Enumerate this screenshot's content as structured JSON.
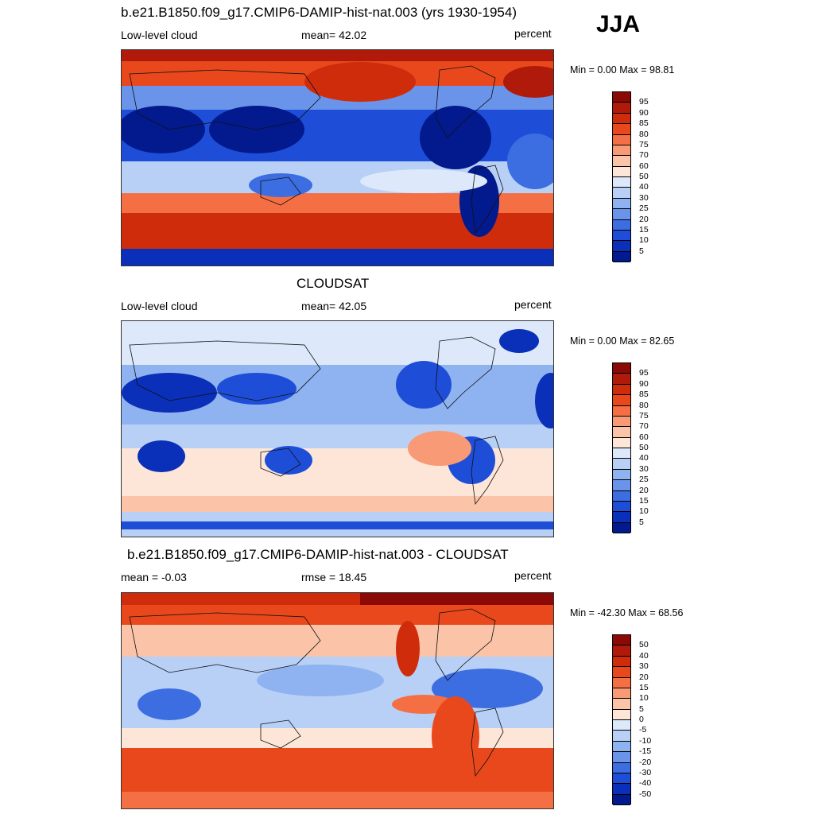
{
  "season": "JJA",
  "panels": [
    {
      "title": "b.e21.B1850.f09_g17.CMIP6-DAMIP-hist-nat.003 (yrs 1930-1954)",
      "left": "Low-level cloud",
      "center": "mean=  42.02",
      "right": "percent",
      "minmax": "Min =   0.00 Max =  98.81",
      "colorbar_labels": [
        "95",
        "90",
        "85",
        "80",
        "75",
        "70",
        "60",
        "50",
        "40",
        "30",
        "25",
        "20",
        "15",
        "10",
        "5"
      ]
    },
    {
      "title": "CLOUDSAT",
      "left": "Low-level cloud",
      "center": "mean=  42.05",
      "right": "percent",
      "minmax": "Min =   0.00 Max =  82.65",
      "colorbar_labels": [
        "95",
        "90",
        "85",
        "80",
        "75",
        "70",
        "60",
        "50",
        "40",
        "30",
        "25",
        "20",
        "15",
        "10",
        "5"
      ]
    },
    {
      "title": "b.e21.B1850.f09_g17.CMIP6-DAMIP-hist-nat.003 - CLOUDSAT",
      "left": "mean =  -0.03",
      "center": "rmse =  18.45",
      "right": "percent",
      "minmax": "Min = -42.30 Max =  68.56",
      "colorbar_labels": [
        "50",
        "40",
        "30",
        "20",
        "15",
        "10",
        "5",
        "0",
        "-5",
        "-10",
        "-15",
        "-20",
        "-30",
        "-40",
        "-50"
      ]
    }
  ],
  "colors": {
    "scale": [
      "#8b0a05",
      "#b01a0a",
      "#cf2c0c",
      "#e9481c",
      "#f56f44",
      "#f99a76",
      "#fbc4a8",
      "#fde6d8",
      "#dde9fb",
      "#b8d0f6",
      "#8fb3f0",
      "#6a93ea",
      "#3c6ee2",
      "#1e4ed8",
      "#0a2fb8",
      "#031a8e"
    ]
  }
}
